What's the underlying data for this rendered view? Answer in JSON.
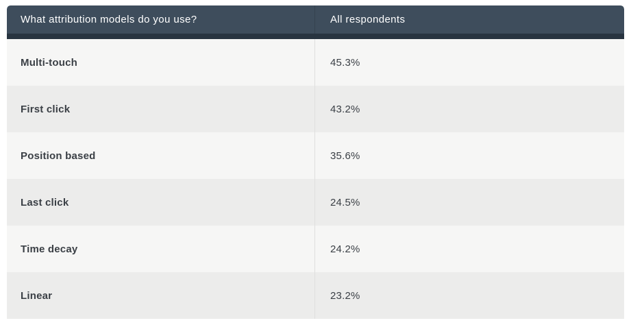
{
  "table": {
    "header": {
      "question": "What attribution models do you use?",
      "respondents": "All respondents"
    },
    "rows": [
      {
        "label": "Multi-touch",
        "value": "45.3%"
      },
      {
        "label": "First click",
        "value": "43.2%"
      },
      {
        "label": "Position based",
        "value": "35.6%"
      },
      {
        "label": "Last click",
        "value": "24.5%"
      },
      {
        "label": "Time decay",
        "value": "24.2%"
      },
      {
        "label": "Linear",
        "value": "23.2%"
      }
    ]
  },
  "chart_data": {
    "type": "table",
    "title": "What attribution models do you use?",
    "columns": [
      "What attribution models do you use?",
      "All respondents"
    ],
    "categories": [
      "Multi-touch",
      "First click",
      "Position based",
      "Last click",
      "Time decay",
      "Linear"
    ],
    "values": [
      45.3,
      43.2,
      35.6,
      24.5,
      24.2,
      23.2
    ],
    "value_unit": "percent",
    "layout_hints": {
      "striped_rows": true,
      "header_style": "dark",
      "sort_order": "descending by value"
    }
  },
  "colors": {
    "header_bg": "#3e4d5c",
    "header_border": "#283440",
    "header_divider": "#354250",
    "header_text": "#ffffff",
    "row_light": "#f6f6f5",
    "row_dark": "#ececeb",
    "divider": "#dfdfde",
    "label_text": "#3a3f45",
    "value_text": "#3a3f45"
  }
}
